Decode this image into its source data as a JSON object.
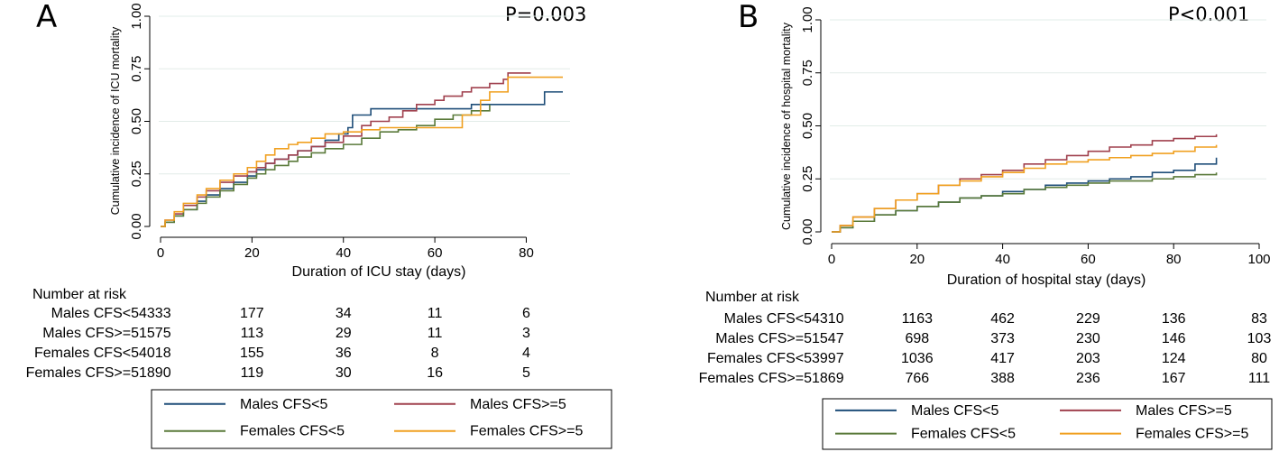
{
  "colors": {
    "males_lt5": "#1f4e79",
    "males_ge5": "#a0414e",
    "females_lt5": "#5a7a3a",
    "females_ge5": "#f0a020",
    "grid": "#e2ece8"
  },
  "panels": [
    {
      "letter": "A",
      "pvalue": "P=0.003",
      "risk_title": "Number at risk",
      "risk_rows": [
        {
          "label": "Males CFS<5",
          "values": [
            "4333",
            "177",
            "34",
            "11",
            "6"
          ]
        },
        {
          "label": "Males CFS>=5",
          "values": [
            "1575",
            "113",
            "29",
            "11",
            "3"
          ]
        },
        {
          "label": "Females CFS<5",
          "values": [
            "4018",
            "155",
            "36",
            "8",
            "4"
          ]
        },
        {
          "label": "Females CFS>=5",
          "values": [
            "1890",
            "119",
            "30",
            "16",
            "5"
          ]
        }
      ],
      "legend": [
        "Males CFS<5",
        "Males CFS>=5",
        "Females CFS<5",
        "Females CFS>=5"
      ]
    },
    {
      "letter": "B",
      "pvalue": "P<0.001",
      "risk_title": "Number at risk",
      "risk_rows": [
        {
          "label": "Males CFS<5",
          "values": [
            "4310",
            "1163",
            "462",
            "229",
            "136",
            "83"
          ]
        },
        {
          "label": "Males CFS>=5",
          "values": [
            "1547",
            "698",
            "373",
            "230",
            "146",
            "103"
          ]
        },
        {
          "label": "Females CFS<5",
          "values": [
            "3997",
            "1036",
            "417",
            "203",
            "124",
            "80"
          ]
        },
        {
          "label": "Females CFS>=5",
          "values": [
            "1869",
            "766",
            "388",
            "236",
            "167",
            "111"
          ]
        }
      ],
      "legend": [
        "Males CFS<5",
        "Males CFS>=5",
        "Females CFS<5",
        "Females CFS>=5"
      ]
    }
  ],
  "chart_data": [
    {
      "type": "line",
      "title": "",
      "xlabel": "Duration of ICU stay (days)",
      "ylabel": "Cumulative incidence of ICU mortality",
      "xlim": [
        0,
        88
      ],
      "ylim": [
        0,
        1
      ],
      "xticks": [
        "0",
        "20",
        "40",
        "60",
        "80"
      ],
      "yticks": [
        "0.00",
        "0.25",
        "0.50",
        "0.75",
        "1.00"
      ],
      "grid": true,
      "legend_position": "bottom",
      "series": [
        {
          "name": "Males CFS<5",
          "color_key": "males_lt5",
          "x": [
            0,
            1,
            3,
            5,
            8,
            10,
            13,
            16,
            19,
            21,
            23,
            25,
            28,
            30,
            33,
            36,
            39,
            41,
            42,
            44,
            46,
            50,
            55,
            60,
            68,
            72,
            76,
            80,
            84,
            88
          ],
          "y": [
            0,
            0.02,
            0.05,
            0.08,
            0.12,
            0.15,
            0.18,
            0.21,
            0.24,
            0.27,
            0.3,
            0.32,
            0.34,
            0.36,
            0.38,
            0.41,
            0.44,
            0.47,
            0.53,
            0.53,
            0.56,
            0.56,
            0.56,
            0.56,
            0.58,
            0.58,
            0.58,
            0.58,
            0.64,
            0.64
          ]
        },
        {
          "name": "Males CFS>=5",
          "color_key": "males_ge5",
          "x": [
            0,
            1,
            3,
            5,
            8,
            10,
            13,
            16,
            19,
            21,
            23,
            25,
            28,
            30,
            33,
            36,
            40,
            44,
            46,
            50,
            53,
            56,
            60,
            62,
            66,
            68,
            72,
            75,
            76,
            80,
            81
          ],
          "y": [
            0,
            0.03,
            0.06,
            0.1,
            0.14,
            0.17,
            0.21,
            0.24,
            0.26,
            0.28,
            0.3,
            0.32,
            0.34,
            0.36,
            0.38,
            0.4,
            0.43,
            0.48,
            0.5,
            0.52,
            0.55,
            0.58,
            0.6,
            0.62,
            0.64,
            0.66,
            0.68,
            0.7,
            0.73,
            0.73,
            0.73
          ]
        },
        {
          "name": "Females CFS<5",
          "color_key": "females_lt5",
          "x": [
            0,
            1,
            3,
            5,
            8,
            10,
            13,
            16,
            19,
            21,
            23,
            25,
            28,
            30,
            33,
            36,
            40,
            44,
            48,
            52,
            56,
            60,
            64,
            68,
            72
          ],
          "y": [
            0,
            0.02,
            0.05,
            0.08,
            0.11,
            0.14,
            0.17,
            0.2,
            0.23,
            0.25,
            0.27,
            0.29,
            0.31,
            0.33,
            0.35,
            0.37,
            0.39,
            0.42,
            0.45,
            0.46,
            0.48,
            0.51,
            0.53,
            0.55,
            0.58
          ]
        },
        {
          "name": "Females CFS>=5",
          "color_key": "females_ge5",
          "x": [
            0,
            1,
            3,
            5,
            8,
            10,
            13,
            16,
            19,
            21,
            23,
            25,
            28,
            30,
            33,
            36,
            40,
            44,
            48,
            52,
            56,
            60,
            66,
            70,
            72,
            76,
            88
          ],
          "y": [
            0,
            0.03,
            0.07,
            0.11,
            0.15,
            0.18,
            0.22,
            0.25,
            0.28,
            0.31,
            0.34,
            0.37,
            0.39,
            0.4,
            0.42,
            0.44,
            0.45,
            0.46,
            0.47,
            0.47,
            0.47,
            0.47,
            0.53,
            0.6,
            0.64,
            0.71,
            0.71
          ]
        }
      ]
    },
    {
      "type": "line",
      "title": "",
      "xlabel": "Duration of hospital stay (days)",
      "ylabel": "Cumulative incidence of hospital mortality",
      "xlim": [
        0,
        100
      ],
      "ylim": [
        0,
        1
      ],
      "xticks": [
        "0",
        "20",
        "40",
        "60",
        "80",
        "100"
      ],
      "yticks": [
        "0.00",
        "0.25",
        "0.50",
        "0.75",
        "1.00"
      ],
      "grid": true,
      "legend_position": "bottom",
      "series": [
        {
          "name": "Males CFS<5",
          "color_key": "males_lt5",
          "x": [
            0,
            2,
            5,
            10,
            15,
            20,
            25,
            30,
            35,
            40,
            45,
            50,
            55,
            60,
            65,
            70,
            75,
            80,
            85,
            90
          ],
          "y": [
            0,
            0.02,
            0.05,
            0.08,
            0.1,
            0.12,
            0.14,
            0.16,
            0.17,
            0.19,
            0.2,
            0.22,
            0.23,
            0.24,
            0.25,
            0.26,
            0.28,
            0.29,
            0.32,
            0.35
          ]
        },
        {
          "name": "Males CFS>=5",
          "color_key": "males_ge5",
          "x": [
            0,
            2,
            5,
            10,
            15,
            20,
            25,
            30,
            35,
            40,
            45,
            50,
            55,
            60,
            65,
            70,
            75,
            80,
            85,
            90
          ],
          "y": [
            0,
            0.03,
            0.07,
            0.11,
            0.15,
            0.18,
            0.22,
            0.25,
            0.27,
            0.29,
            0.32,
            0.34,
            0.36,
            0.38,
            0.4,
            0.41,
            0.43,
            0.44,
            0.45,
            0.46
          ]
        },
        {
          "name": "Females CFS<5",
          "color_key": "females_lt5",
          "x": [
            0,
            2,
            5,
            10,
            15,
            20,
            25,
            30,
            35,
            40,
            45,
            50,
            55,
            60,
            65,
            70,
            75,
            80,
            85,
            90
          ],
          "y": [
            0,
            0.02,
            0.05,
            0.08,
            0.1,
            0.12,
            0.14,
            0.16,
            0.17,
            0.18,
            0.2,
            0.21,
            0.22,
            0.23,
            0.24,
            0.24,
            0.25,
            0.26,
            0.27,
            0.28
          ]
        },
        {
          "name": "Females CFS>=5",
          "color_key": "females_ge5",
          "x": [
            0,
            2,
            5,
            10,
            15,
            20,
            25,
            30,
            35,
            40,
            45,
            50,
            55,
            60,
            65,
            70,
            75,
            80,
            85,
            90
          ],
          "y": [
            0,
            0.03,
            0.07,
            0.11,
            0.15,
            0.18,
            0.22,
            0.24,
            0.26,
            0.28,
            0.3,
            0.32,
            0.33,
            0.34,
            0.35,
            0.36,
            0.37,
            0.38,
            0.4,
            0.41
          ]
        }
      ]
    }
  ]
}
